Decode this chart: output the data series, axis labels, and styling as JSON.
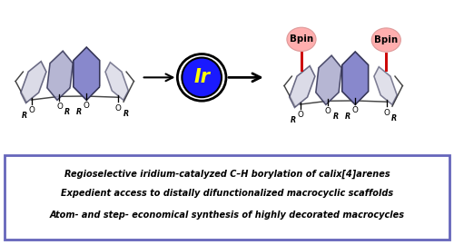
{
  "bg_color": "#ffffff",
  "text_line1": "Regioselective iridium-catalyzed C–H borylation of calix[4]arenes",
  "text_line2": "Expedient access to distally difunctionalized macrocyclic scaffolds",
  "text_line3": "Atom- and step- economical synthesis of highly decorated macrocycles",
  "ir_circle_color": "#1a1aff",
  "ir_text_color": "#ffff00",
  "ir_outline_color": "#000000",
  "bpin_color": "#ffaaaa",
  "bpin_text": "Bpin",
  "bpin_text_color": "#000000",
  "arrow_color": "#000000",
  "ring_color_front": "#8888cc",
  "ring_color_side": "#aaaacc",
  "ring_color_back": "#ccccdd",
  "ring_outline": "#333355",
  "bond_color": "#444444",
  "text_box_border": "#6666bb",
  "red_bond_color": "#cc0000",
  "or_color": "#000000"
}
